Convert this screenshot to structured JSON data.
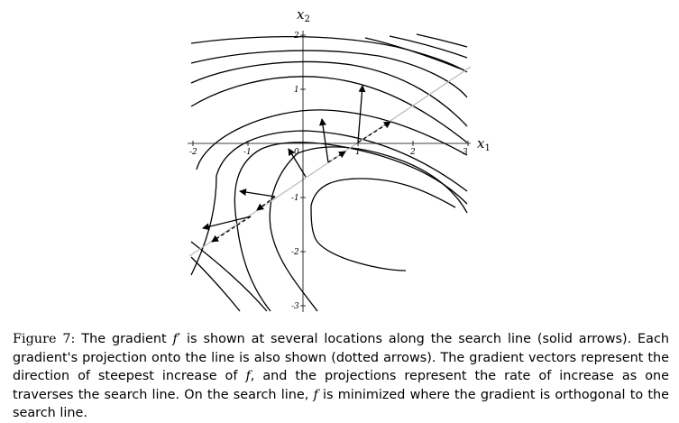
{
  "figure": {
    "x_axis_name": "x",
    "x_axis_sub": "1",
    "y_axis_name": "x",
    "y_axis_sub": "2",
    "x_ticks": [
      "-2",
      "-1",
      "0",
      "1",
      "2",
      "3"
    ],
    "y_ticks": [
      "2",
      "1",
      "-1",
      "-2",
      "-3"
    ],
    "colors": {
      "contour": "#000000",
      "search_line": "#bdbdbd",
      "arrow": "#000000"
    }
  },
  "caption": {
    "label": "Figure 7:",
    "p1": " The gradient ",
    "f_symbol": "f",
    "prime": "′",
    "p2": " is shown at several locations along the search line (solid arrows). Each gradient's projection onto the line is also shown (dotted arrows).  The gradient vectors represent the direction of steepest increase of ",
    "f2": "f",
    "p3": ", and the projections represent the rate of increase as one traverses the search line. On the search line, ",
    "f3": "f",
    "p4": " is minimized where the gradient is orthogonal to the search line."
  }
}
